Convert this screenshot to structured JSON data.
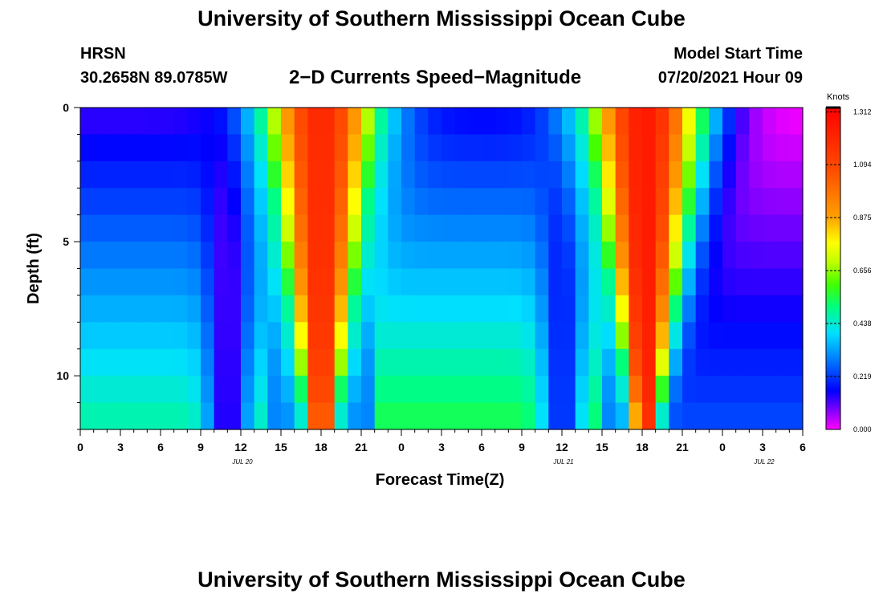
{
  "page": {
    "title_top": "University of Southern Mississippi Ocean Cube",
    "title_bottom": "University of Southern Mississippi Ocean Cube",
    "station": "HRSN",
    "coordinates": "30.2658N  89.0785W",
    "subtitle": "2−D Currents Speed−Magnitude",
    "model_start_label": "Model Start Time",
    "model_start_value": "07/20/2021 Hour 09"
  },
  "chart_data": {
    "type": "heatmap",
    "title": "2-D Currents Speed-Magnitude",
    "xlabel": "Forecast Time(Z)",
    "ylabel": "Depth (ft)",
    "x_tick_labels": [
      "0",
      "3",
      "6",
      "9",
      "12",
      "15",
      "18",
      "21",
      "0",
      "3",
      "6",
      "9",
      "12",
      "15",
      "18",
      "21",
      "0",
      "3",
      "6"
    ],
    "x_hours_range": [
      0,
      54
    ],
    "date_labels": [
      {
        "label": "JUL 20",
        "hour": 12
      },
      {
        "label": "JUL 21",
        "hour": 36
      },
      {
        "label": "JUL 22",
        "hour": 51
      }
    ],
    "y_tick_labels": [
      "0",
      "5",
      "10"
    ],
    "ylim": [
      0,
      12
    ],
    "colorbar": {
      "unit": "Knots",
      "min": 0.0,
      "max": 1.33,
      "tick_labels": [
        "0.000",
        "0.219",
        "0.438",
        "0.656",
        "0.875",
        "1.094",
        "1.312"
      ],
      "tick_values": [
        0.0,
        0.219,
        0.438,
        0.656,
        0.875,
        1.094,
        1.312
      ]
    },
    "depths_ft": [
      0.5,
      1.5,
      2.5,
      3.5,
      4.5,
      5.5,
      6.5,
      7.5,
      8.5,
      9.5,
      10.5,
      11.5
    ],
    "peaks": [
      {
        "center_hour": 18,
        "value": 1.2,
        "width_surface_h": 4.8,
        "width_bottom_h": 1.2
      },
      {
        "center_hour": 42.2,
        "value": 1.25,
        "width_surface_h": 4.8,
        "width_bottom_h": 1.0
      }
    ],
    "troughs": [
      {
        "center_hour": 5.5,
        "surface_value": 0.12,
        "bottom_value": 0.48
      },
      {
        "center_hour": 30.5,
        "surface_value": 0.15,
        "bottom_value": 0.55
      },
      {
        "center_hour": 52.5,
        "surface_value": 0.0,
        "bottom_value": 0.24
      }
    ],
    "slack_values": [
      {
        "hour": 11,
        "value": 0.1
      },
      {
        "hour": 36,
        "value": 0.18
      }
    ]
  }
}
